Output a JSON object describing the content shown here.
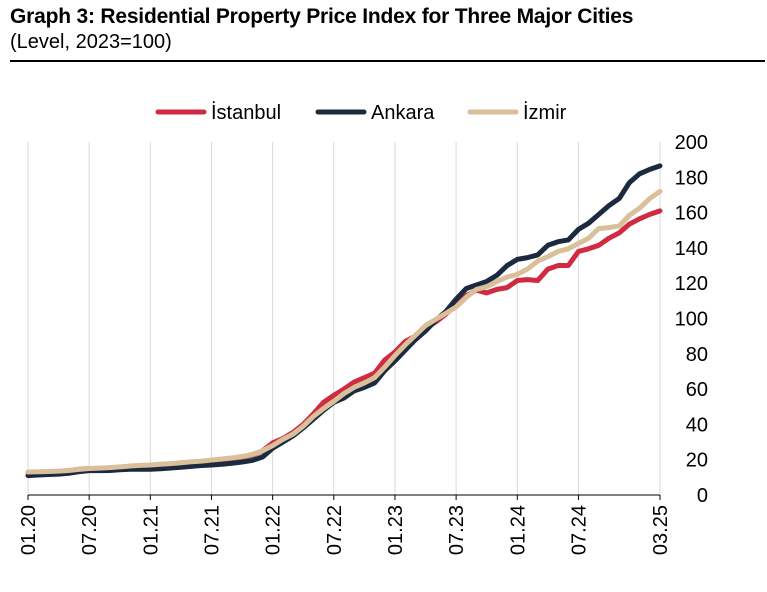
{
  "title": "Graph 3: Residential Property Price Index for Three Major Cities",
  "subtitle": "(Level, 2023=100)",
  "chart_data": {
    "type": "line",
    "title": "Graph 3: Residential Property Price Index for Three Major Cities",
    "subtitle": "(Level, 2023=100)",
    "xlabel": "",
    "ylabel": "",
    "x": [
      "01.20",
      "02.20",
      "03.20",
      "04.20",
      "05.20",
      "06.20",
      "07.20",
      "08.20",
      "09.20",
      "10.20",
      "11.20",
      "12.20",
      "01.21",
      "02.21",
      "03.21",
      "04.21",
      "05.21",
      "06.21",
      "07.21",
      "08.21",
      "09.21",
      "10.21",
      "11.21",
      "12.21",
      "01.22",
      "02.22",
      "03.22",
      "04.22",
      "05.22",
      "06.22",
      "07.22",
      "08.22",
      "09.22",
      "10.22",
      "11.22",
      "12.22",
      "01.23",
      "02.23",
      "03.23",
      "04.23",
      "05.23",
      "06.23",
      "07.23",
      "08.23",
      "09.23",
      "10.23",
      "11.23",
      "12.23",
      "01.24",
      "02.24",
      "03.24",
      "04.24",
      "05.24",
      "06.24",
      "07.24",
      "08.24",
      "09.24",
      "10.24",
      "11.24",
      "12.24",
      "01.25",
      "02.25",
      "03.25"
    ],
    "x_tick_labels": [
      "01.20",
      "07.20",
      "01.21",
      "07.21",
      "01.22",
      "07.22",
      "01.23",
      "07.23",
      "01.24",
      "07.24",
      "03.25"
    ],
    "ylim": [
      0,
      200
    ],
    "y_ticks": [
      0,
      20,
      40,
      60,
      80,
      100,
      120,
      140,
      160,
      180,
      200
    ],
    "grid": "vertical",
    "legend_position": "top",
    "series": [
      {
        "name": "İstanbul",
        "color": "#d02b40",
        "values": [
          12.8,
          13.0,
          13.1,
          13.3,
          13.8,
          14.6,
          15.0,
          15.1,
          15.3,
          15.8,
          16.2,
          16.5,
          16.8,
          17.2,
          17.6,
          18.0,
          18.4,
          18.9,
          19.6,
          20.2,
          20.8,
          21.6,
          22.6,
          25.0,
          29.5,
          32.0,
          35.5,
          40.0,
          46.0,
          52.5,
          56.5,
          60.0,
          64.0,
          66.5,
          69.0,
          76.5,
          81.0,
          87.0,
          90.0,
          94.5,
          98.0,
          102.5,
          108.0,
          113.0,
          116.0,
          114.5,
          116.5,
          117.5,
          121.5,
          122.0,
          121.5,
          128.0,
          130.0,
          130.0,
          138.0,
          139.5,
          141.5,
          145.5,
          148.5,
          153.5,
          156.5,
          159.0,
          161.0
        ]
      },
      {
        "name": "Ankara",
        "color": "#1b2a3f",
        "values": [
          11.0,
          11.3,
          11.6,
          11.8,
          12.3,
          13.2,
          13.8,
          13.8,
          13.9,
          14.3,
          14.6,
          14.6,
          14.6,
          14.9,
          15.3,
          15.7,
          16.2,
          16.7,
          17.0,
          17.4,
          18.0,
          18.7,
          19.6,
          21.5,
          26.5,
          30.0,
          33.5,
          38.0,
          43.0,
          48.0,
          52.5,
          55.0,
          59.0,
          61.0,
          63.5,
          70.5,
          76.0,
          82.0,
          88.0,
          93.0,
          99.0,
          104.0,
          111.0,
          117.0,
          119.0,
          121.0,
          124.5,
          130.0,
          133.5,
          134.5,
          136.0,
          141.5,
          143.5,
          144.5,
          150.5,
          154.0,
          159.0,
          164.0,
          168.0,
          177.0,
          182.0,
          184.5,
          186.5
        ]
      },
      {
        "name": "İzmir",
        "color": "#d9c09a",
        "values": [
          13.0,
          13.2,
          13.3,
          13.5,
          13.9,
          14.5,
          15.0,
          15.2,
          15.5,
          15.9,
          16.4,
          16.8,
          17.0,
          17.4,
          17.8,
          18.3,
          18.8,
          19.2,
          19.8,
          20.4,
          21.0,
          21.8,
          23.0,
          25.0,
          28.0,
          31.5,
          34.5,
          39.0,
          44.5,
          49.0,
          53.0,
          57.5,
          61.0,
          63.5,
          66.5,
          72.5,
          79.0,
          85.0,
          90.5,
          96.0,
          99.5,
          103.0,
          106.5,
          112.0,
          116.5,
          118.0,
          121.0,
          123.5,
          125.0,
          128.0,
          132.5,
          135.0,
          138.0,
          139.5,
          142.5,
          145.5,
          151.0,
          151.5,
          152.5,
          158.5,
          162.5,
          168.0,
          172.0
        ]
      }
    ]
  }
}
